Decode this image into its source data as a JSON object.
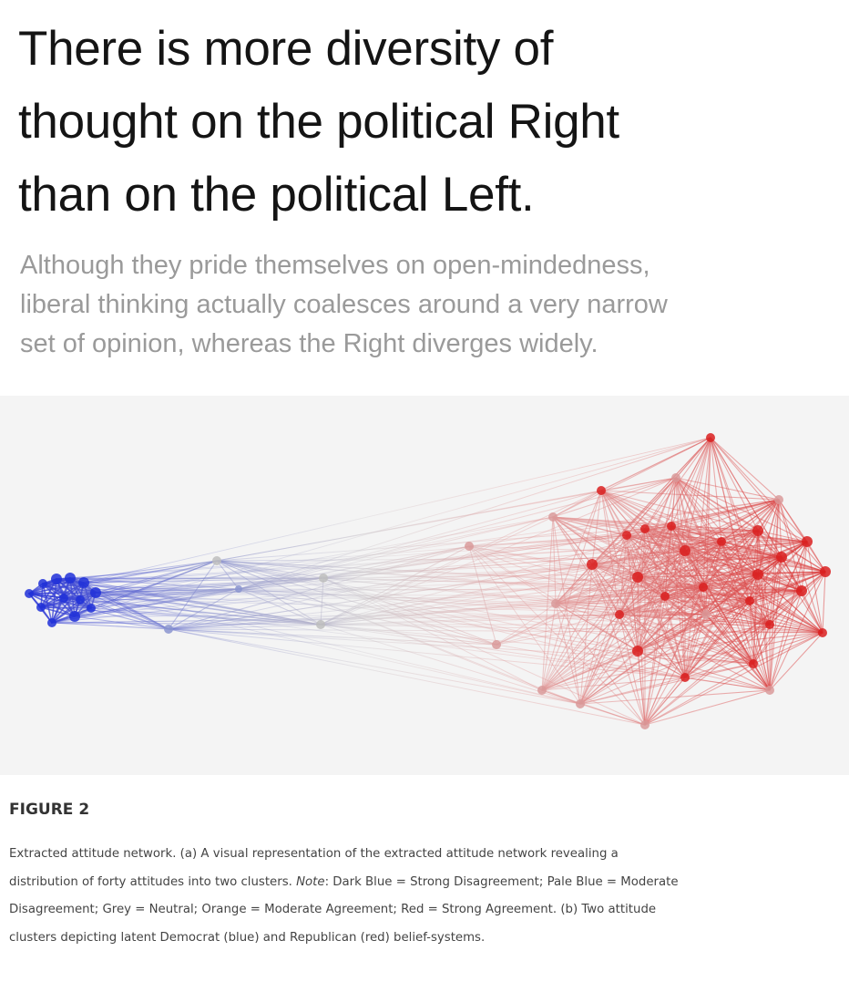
{
  "headline": {
    "lines": [
      "There is more diversity of",
      "thought on the political Right",
      "than on the political Left."
    ]
  },
  "subhead": {
    "lines": [
      "Although they pride themselves on open-mindedness,",
      "liberal thinking actually coalesces around a very narrow",
      "set of opinion, whereas the Right diverges widely."
    ]
  },
  "figure": {
    "label": "FIGURE 2",
    "caption": {
      "line1": "Extracted attitude network. (a) A visual representation of the extracted attitude network revealing a",
      "line2_pre": "distribution of forty attitudes into two clusters. ",
      "note_label": "Note",
      "line2_post": ": Dark Blue = Strong Disagreement; Pale Blue = Moderate",
      "line3": "Disagreement; Grey = Neutral; Orange = Moderate Agreement; Red = Strong Agreement. (b) Two attitude",
      "line4": "clusters depicting latent Democrat (blue) and Republican (red) belief-systems."
    }
  },
  "network": {
    "node_colors": {
      "blue": "#2030d8",
      "pale_blue": "#8a94cf",
      "grey": "#bdbdbd",
      "pale_red": "#d99a9a",
      "red": "#d91e1e"
    },
    "clusters": [
      {
        "name": "Democrat",
        "color": "blue"
      },
      {
        "name": "Republican",
        "color": "red"
      }
    ]
  }
}
